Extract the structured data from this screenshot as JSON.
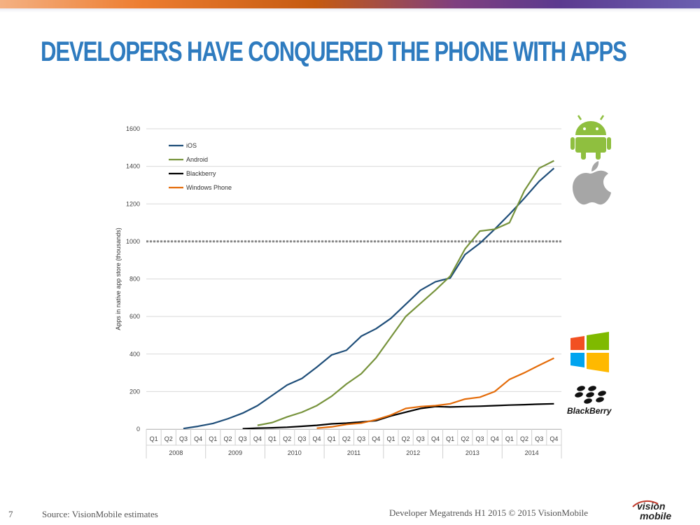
{
  "slide": {
    "title": "DEVELOPERS HAVE CONQUERED THE PHONE WITH APPS",
    "page_number": "7",
    "source": "Source: VisionMobile estimates",
    "credit": "Developer Megatrends H1 2015 © 2015 VisionMobile",
    "logo_line1": "vision",
    "logo_line2": "mobile",
    "blackberry_logo_text": "BlackBerry"
  },
  "colors": {
    "title": "#2e7bbf",
    "ios": "#1f4e79",
    "android": "#77933c",
    "blackberry": "#000000",
    "windows_phone": "#e46c0a",
    "reference_line": "#888888"
  },
  "chart_data": {
    "type": "line",
    "title": "",
    "xlabel": "",
    "ylabel": "Apps in native app store (thousands)",
    "ylim": [
      0,
      1600
    ],
    "yticks": [
      0,
      200,
      400,
      600,
      800,
      1000,
      1200,
      1400,
      1600
    ],
    "grid": true,
    "legend_position": "top-left",
    "quarters": [
      "Q1",
      "Q2",
      "Q3",
      "Q4",
      "Q1",
      "Q2",
      "Q3",
      "Q4",
      "Q1",
      "Q2",
      "Q3",
      "Q4",
      "Q1",
      "Q2",
      "Q3",
      "Q4",
      "Q1",
      "Q2",
      "Q3",
      "Q4",
      "Q1",
      "Q2",
      "Q3",
      "Q4",
      "Q1",
      "Q2",
      "Q3",
      "Q4"
    ],
    "years": [
      "2008",
      "2009",
      "2010",
      "2011",
      "2012",
      "2013",
      "2014"
    ],
    "reference_line": {
      "y": 1000,
      "style": "dotted"
    },
    "series": [
      {
        "name": "iOS",
        "color": "#1f4e79",
        "values": [
          null,
          null,
          3,
          15,
          30,
          55,
          85,
          125,
          180,
          235,
          270,
          330,
          395,
          420,
          495,
          535,
          590,
          665,
          740,
          785,
          805,
          930,
          990,
          1065,
          1145,
          1230,
          1320,
          1390
        ]
      },
      {
        "name": "Android",
        "color": "#77933c",
        "values": [
          null,
          null,
          null,
          null,
          null,
          null,
          null,
          20,
          35,
          65,
          90,
          125,
          175,
          240,
          295,
          380,
          490,
          600,
          670,
          740,
          815,
          960,
          1055,
          1065,
          1100,
          1270,
          1390,
          1430
        ]
      },
      {
        "name": "Blackberry",
        "color": "#000000",
        "values": [
          null,
          null,
          null,
          null,
          null,
          null,
          2,
          5,
          7,
          10,
          15,
          20,
          28,
          32,
          38,
          45,
          70,
          90,
          110,
          120,
          118,
          120,
          122,
          125,
          128,
          130,
          133,
          135
        ]
      },
      {
        "name": "Windows Phone",
        "color": "#e46c0a",
        "values": [
          null,
          null,
          null,
          null,
          null,
          null,
          null,
          null,
          null,
          null,
          null,
          5,
          12,
          25,
          32,
          50,
          75,
          110,
          120,
          125,
          135,
          160,
          170,
          200,
          265,
          300,
          340,
          378
        ]
      }
    ]
  }
}
